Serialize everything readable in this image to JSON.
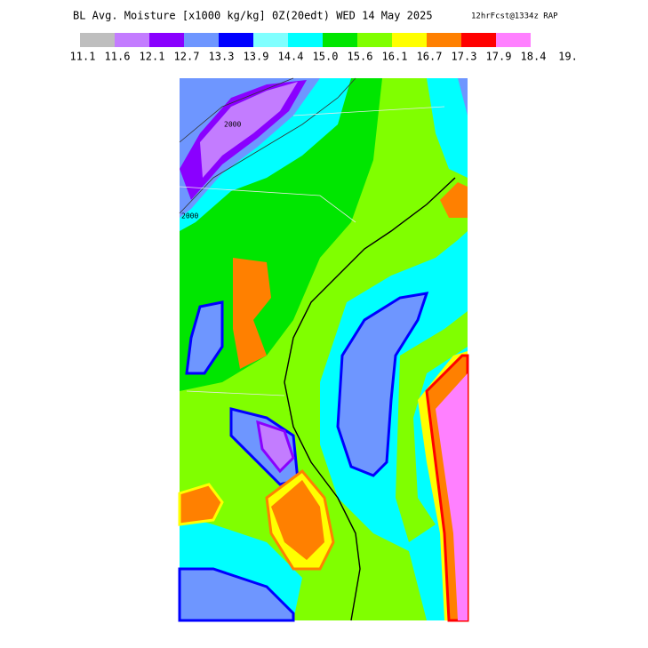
{
  "title": "BL Avg. Moisture [x1000 kg/kg] 0Z(20edt) WED 14 May 2025",
  "subtitle": "12hrFcst@1334z RAP",
  "legend": {
    "colors": [
      "#bebebe",
      "#c37cff",
      "#8a00ff",
      "#6e96ff",
      "#0000ff",
      "#80ffff",
      "#00ffff",
      "#00e600",
      "#80ff00",
      "#ffff00",
      "#ff8000",
      "#ff0000",
      "#ff80ff"
    ],
    "ticks": [
      11.1,
      11.6,
      12.1,
      12.7,
      13.3,
      13.9,
      14.4,
      {
        "value": 15,
        "label": "15.0"
      },
      15.6,
      16.1,
      16.7,
      17.3,
      17.9,
      18.4,
      {
        "value": 19,
        "label": "19."
      }
    ]
  },
  "contour_labels": [
    "2000",
    "2000"
  ]
}
